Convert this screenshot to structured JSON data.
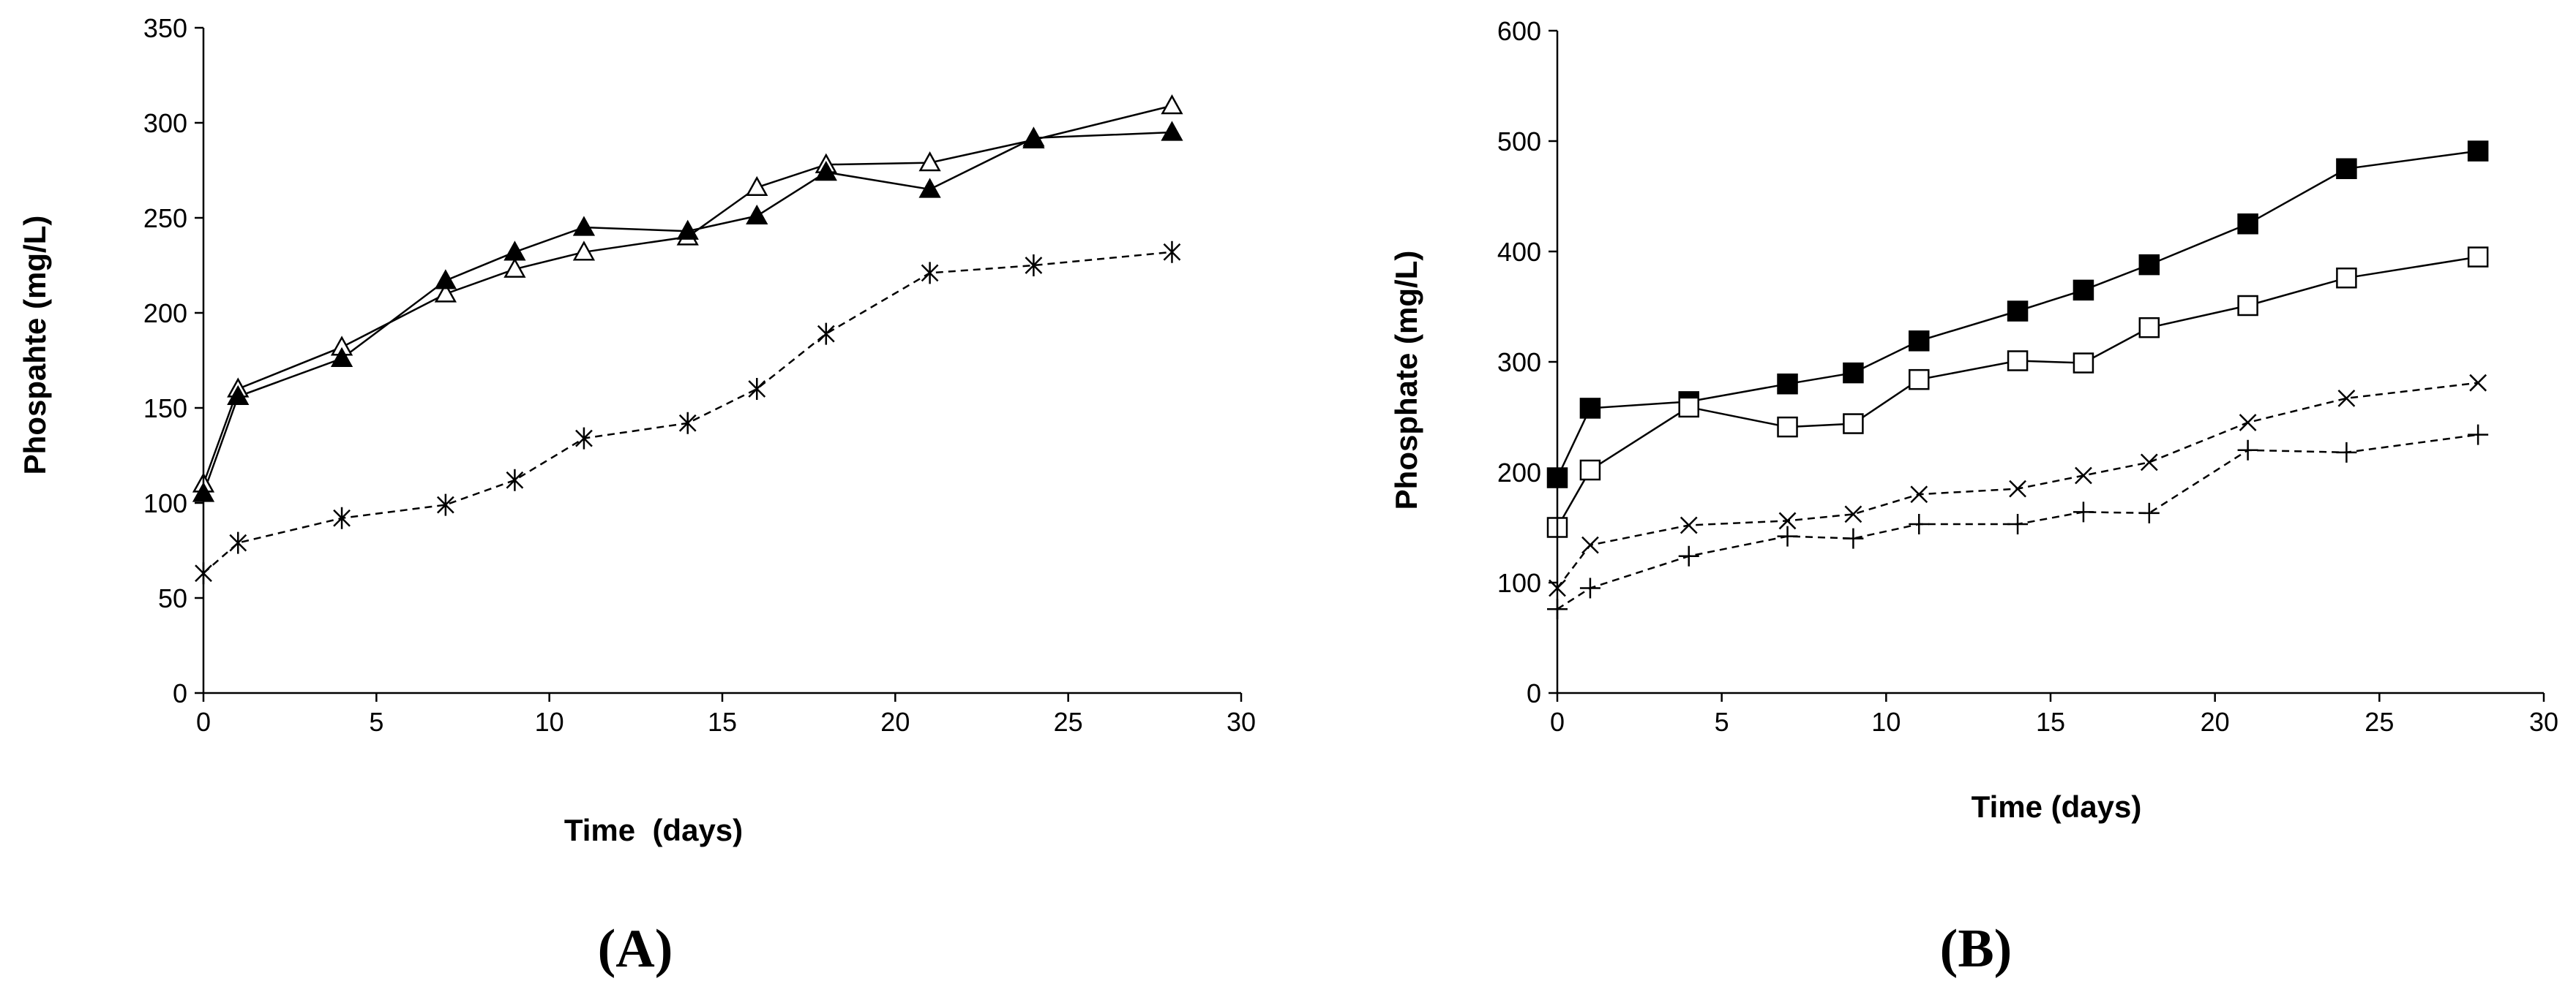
{
  "chart_data": [
    {
      "type": "line",
      "panel_label": "(A)",
      "title": "",
      "xlabel": "Time  (days)",
      "ylabel": "Phospahte (mg/L)",
      "xlim": [
        0,
        30
      ],
      "ylim": [
        0,
        350
      ],
      "xticks": [
        0,
        5,
        10,
        15,
        20,
        25,
        30
      ],
      "yticks": [
        0,
        50,
        100,
        150,
        200,
        250,
        300,
        350
      ],
      "grid": false,
      "series": [
        {
          "name": "open triangle",
          "marker": "triangle-open",
          "dashed": false,
          "x": [
            0,
            1,
            4,
            7,
            9,
            11,
            14,
            16,
            18,
            21,
            24,
            28
          ],
          "values": [
            110,
            160,
            182,
            210,
            223,
            232,
            240,
            266,
            278,
            279,
            291,
            309
          ]
        },
        {
          "name": "filled triangle",
          "marker": "triangle-filled",
          "dashed": false,
          "x": [
            0,
            1,
            4,
            7,
            9,
            11,
            14,
            16,
            18,
            21,
            24,
            28
          ],
          "values": [
            105,
            156,
            176,
            217,
            232,
            245,
            243,
            251,
            274,
            265,
            292,
            295
          ]
        },
        {
          "name": "asterisk",
          "marker": "asterisk",
          "dashed": true,
          "x": [
            0,
            1,
            4,
            7,
            9,
            11,
            14,
            16,
            18,
            21,
            24,
            28
          ],
          "values": [
            63,
            79,
            92,
            99,
            112,
            134,
            142,
            160,
            189,
            221,
            225,
            232
          ]
        }
      ]
    },
    {
      "type": "line",
      "panel_label": "(B)",
      "title": "",
      "xlabel": "Time (days)",
      "ylabel": "Phosphate (mg/L)",
      "xlim": [
        0,
        30
      ],
      "ylim": [
        0,
        600
      ],
      "xticks": [
        0,
        5,
        10,
        15,
        20,
        25,
        30
      ],
      "yticks": [
        0,
        100,
        200,
        300,
        400,
        500,
        600
      ],
      "grid": false,
      "series": [
        {
          "name": "filled square",
          "marker": "square-filled",
          "dashed": false,
          "x": [
            0,
            1,
            4,
            7,
            9,
            11,
            14,
            16,
            18,
            21,
            24,
            28
          ],
          "values": [
            195,
            258,
            264,
            280,
            290,
            319,
            346,
            365,
            388,
            425,
            475,
            491
          ]
        },
        {
          "name": "open square",
          "marker": "square-open",
          "dashed": false,
          "x": [
            0,
            1,
            4,
            7,
            9,
            11,
            14,
            16,
            18,
            21,
            24,
            28
          ],
          "values": [
            150,
            202,
            259,
            241,
            244,
            284,
            301,
            299,
            331,
            351,
            376,
            395
          ]
        },
        {
          "name": "cross x",
          "marker": "x",
          "dashed": true,
          "x": [
            0,
            1,
            4,
            7,
            9,
            11,
            14,
            16,
            18,
            21,
            24,
            28
          ],
          "values": [
            95,
            134,
            152,
            156,
            162,
            180,
            185,
            197,
            209,
            245,
            267,
            281
          ]
        },
        {
          "name": "plus",
          "marker": "plus",
          "dashed": true,
          "x": [
            0,
            1,
            4,
            7,
            9,
            11,
            14,
            16,
            18,
            21,
            24,
            28
          ],
          "values": [
            76,
            95,
            124,
            142,
            140,
            153,
            153,
            164,
            163,
            220,
            218,
            234
          ]
        }
      ]
    }
  ]
}
